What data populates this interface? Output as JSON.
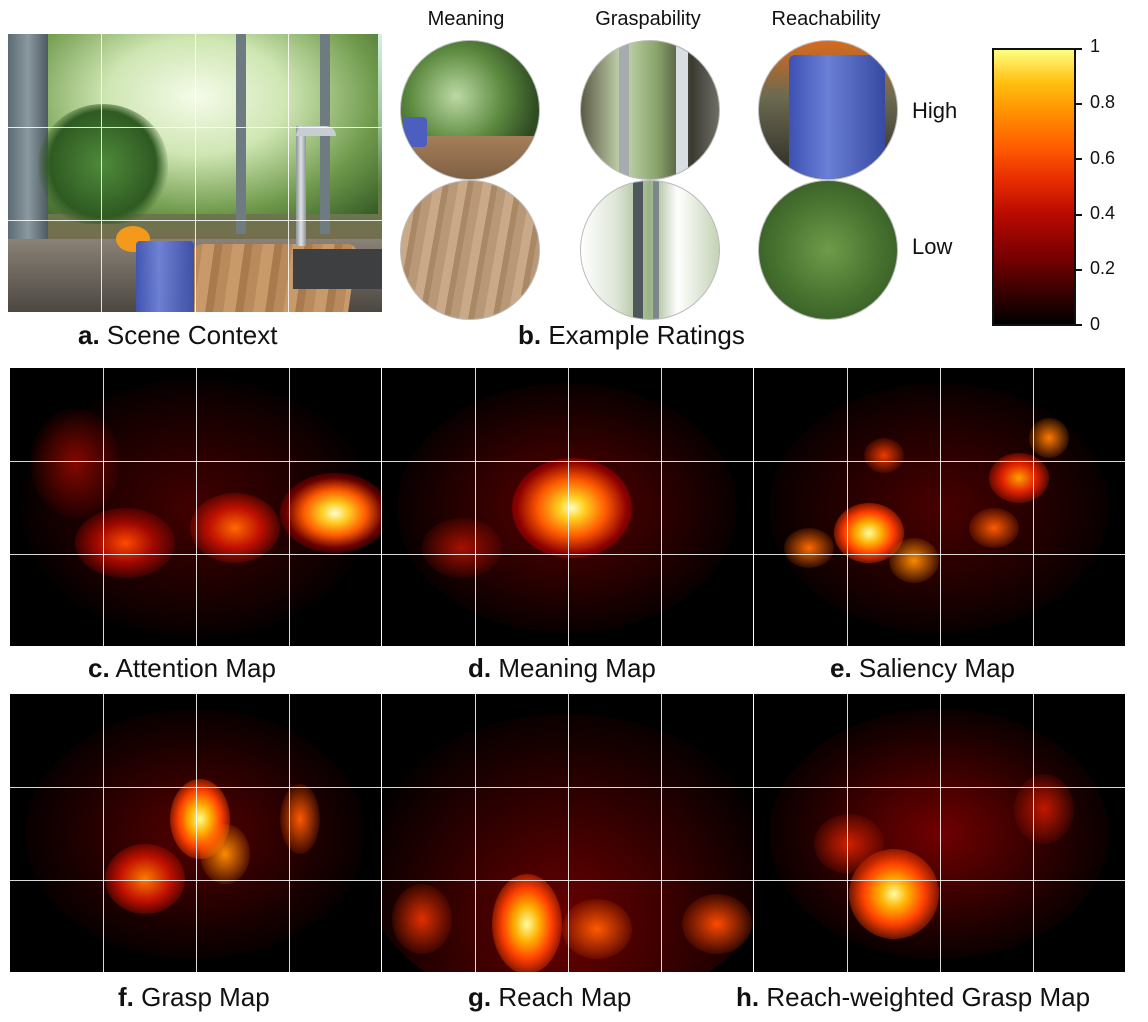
{
  "panel_a": {
    "letter": "a.",
    "title": "Scene Context"
  },
  "panel_b": {
    "letter": "b.",
    "title": "Example Ratings",
    "columns": [
      "Meaning",
      "Graspability",
      "Reachability"
    ],
    "rows": [
      "High",
      "Low"
    ]
  },
  "colorbar": {
    "ticks": [
      "1",
      "0.8",
      "0.6",
      "0.4",
      "0.2",
      "0"
    ],
    "colormap": [
      "#000000",
      "#7a0000",
      "#e52b00",
      "#ff8c00",
      "#ffff80"
    ]
  },
  "maps": [
    {
      "letter": "c.",
      "title": "Attention Map"
    },
    {
      "letter": "d.",
      "title": "Meaning Map"
    },
    {
      "letter": "e.",
      "title": "Saliency Map"
    },
    {
      "letter": "f.",
      "title": "Grasp Map"
    },
    {
      "letter": "g.",
      "title": "Reach Map"
    },
    {
      "letter": "h.",
      "title": "Reach-weighted Grasp Map"
    }
  ]
}
